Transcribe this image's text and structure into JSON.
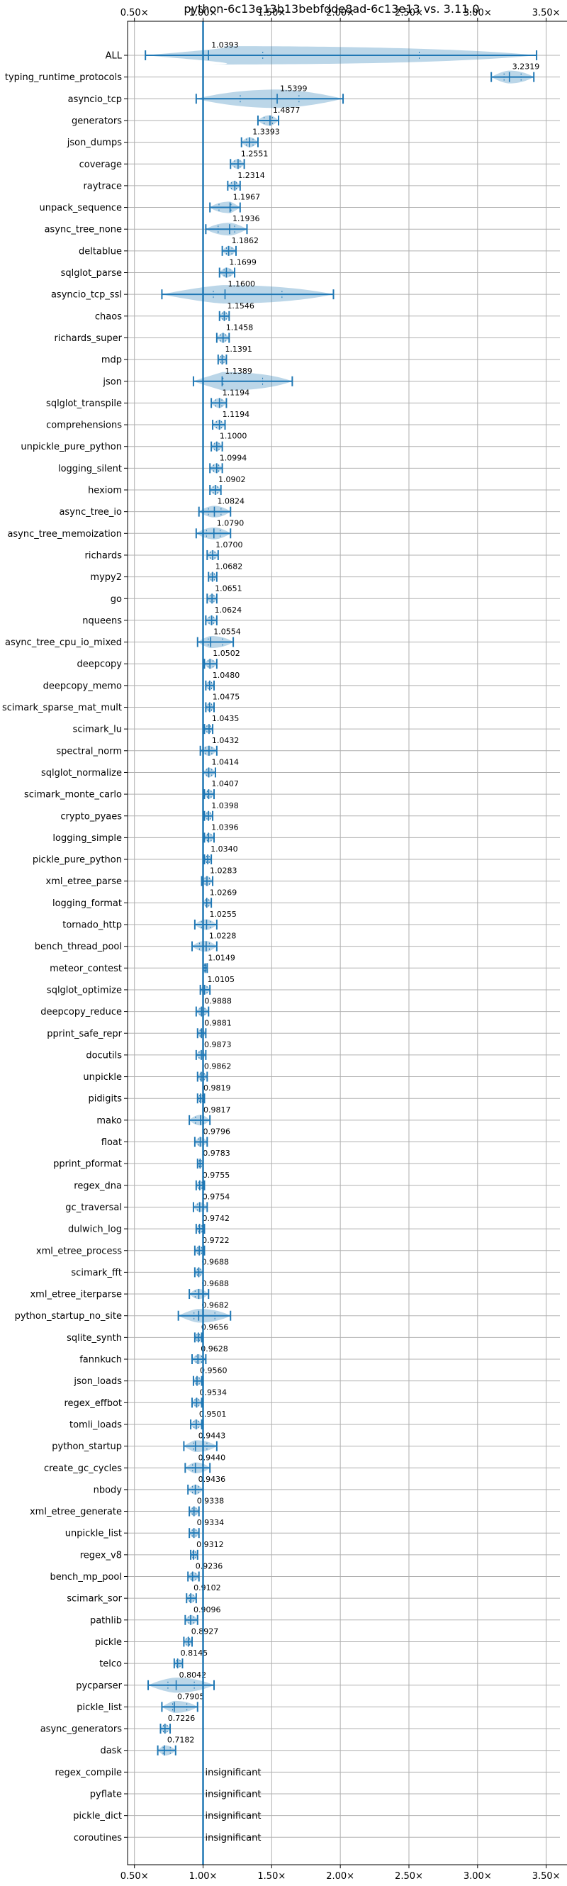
{
  "chart_data": {
    "type": "violin",
    "title": "python-6c13e13b13bebfdde8ad-6c13e13 vs. 3.11.0",
    "xlim": [
      0.45,
      3.6
    ],
    "x_ticks": [
      0.5,
      1.0,
      1.5,
      2.0,
      2.5,
      3.0,
      3.5
    ],
    "x_tick_labels": [
      "0.50×",
      "1.00×",
      "1.50×",
      "2.00×",
      "2.50×",
      "3.00×",
      "3.50×"
    ],
    "reference_line": 1.0,
    "grid": true,
    "rows": [
      {
        "name": "ALL",
        "label": "1.0393",
        "value": 1.0393,
        "min": 0.58,
        "max": 3.43
      },
      {
        "name": "typing_runtime_protocols",
        "label": "3.2319",
        "value": 3.2319,
        "min": 3.1,
        "max": 3.41
      },
      {
        "name": "asyncio_tcp",
        "label": "1.5399",
        "value": 1.5399,
        "min": 0.95,
        "max": 2.02
      },
      {
        "name": "generators",
        "label": "1.4877",
        "value": 1.4877,
        "min": 1.4,
        "max": 1.55
      },
      {
        "name": "json_dumps",
        "label": "1.3393",
        "value": 1.3393,
        "min": 1.28,
        "max": 1.4
      },
      {
        "name": "coverage",
        "label": "1.2551",
        "value": 1.2551,
        "min": 1.2,
        "max": 1.3
      },
      {
        "name": "raytrace",
        "label": "1.2314",
        "value": 1.2314,
        "min": 1.18,
        "max": 1.27
      },
      {
        "name": "unpack_sequence",
        "label": "1.1967",
        "value": 1.1967,
        "min": 1.05,
        "max": 1.27
      },
      {
        "name": "async_tree_none",
        "label": "1.1936",
        "value": 1.1936,
        "min": 1.02,
        "max": 1.32
      },
      {
        "name": "deltablue",
        "label": "1.1862",
        "value": 1.1862,
        "min": 1.14,
        "max": 1.24
      },
      {
        "name": "sqlglot_parse",
        "label": "1.1699",
        "value": 1.1699,
        "min": 1.12,
        "max": 1.23
      },
      {
        "name": "asyncio_tcp_ssl",
        "label": "1.1600",
        "value": 1.16,
        "min": 0.7,
        "max": 1.95
      },
      {
        "name": "chaos",
        "label": "1.1546",
        "value": 1.1546,
        "min": 1.12,
        "max": 1.19
      },
      {
        "name": "richards_super",
        "label": "1.1458",
        "value": 1.1458,
        "min": 1.1,
        "max": 1.19
      },
      {
        "name": "mdp",
        "label": "1.1391",
        "value": 1.1391,
        "min": 1.11,
        "max": 1.17
      },
      {
        "name": "json",
        "label": "1.1389",
        "value": 1.1389,
        "min": 0.93,
        "max": 1.65
      },
      {
        "name": "sqlglot_transpile",
        "label": "1.1194",
        "value": 1.1194,
        "min": 1.06,
        "max": 1.17
      },
      {
        "name": "comprehensions",
        "label": "1.1194",
        "value": 1.1194,
        "min": 1.07,
        "max": 1.16
      },
      {
        "name": "unpickle_pure_python",
        "label": "1.1000",
        "value": 1.1,
        "min": 1.06,
        "max": 1.14
      },
      {
        "name": "logging_silent",
        "label": "1.0994",
        "value": 1.0994,
        "min": 1.05,
        "max": 1.14
      },
      {
        "name": "hexiom",
        "label": "1.0902",
        "value": 1.0902,
        "min": 1.05,
        "max": 1.13
      },
      {
        "name": "async_tree_io",
        "label": "1.0824",
        "value": 1.0824,
        "min": 0.97,
        "max": 1.2
      },
      {
        "name": "async_tree_memoization",
        "label": "1.0790",
        "value": 1.079,
        "min": 0.95,
        "max": 1.2
      },
      {
        "name": "richards",
        "label": "1.0700",
        "value": 1.07,
        "min": 1.03,
        "max": 1.11
      },
      {
        "name": "mypy2",
        "label": "1.0682",
        "value": 1.0682,
        "min": 1.04,
        "max": 1.1
      },
      {
        "name": "go",
        "label": "1.0651",
        "value": 1.0651,
        "min": 1.03,
        "max": 1.1
      },
      {
        "name": "nqueens",
        "label": "1.0624",
        "value": 1.0624,
        "min": 1.02,
        "max": 1.1
      },
      {
        "name": "async_tree_cpu_io_mixed",
        "label": "1.0554",
        "value": 1.0554,
        "min": 0.96,
        "max": 1.22
      },
      {
        "name": "deepcopy",
        "label": "1.0502",
        "value": 1.0502,
        "min": 1.01,
        "max": 1.1
      },
      {
        "name": "deepcopy_memo",
        "label": "1.0480",
        "value": 1.048,
        "min": 1.02,
        "max": 1.08
      },
      {
        "name": "scimark_sparse_mat_mult",
        "label": "1.0475",
        "value": 1.0475,
        "min": 1.02,
        "max": 1.08
      },
      {
        "name": "scimark_lu",
        "label": "1.0435",
        "value": 1.0435,
        "min": 1.01,
        "max": 1.07
      },
      {
        "name": "spectral_norm",
        "label": "1.0432",
        "value": 1.0432,
        "min": 0.98,
        "max": 1.1
      },
      {
        "name": "sqlglot_normalize",
        "label": "1.0414",
        "value": 1.0414,
        "min": 1.0,
        "max": 1.09
      },
      {
        "name": "scimark_monte_carlo",
        "label": "1.0407",
        "value": 1.0407,
        "min": 1.01,
        "max": 1.08
      },
      {
        "name": "crypto_pyaes",
        "label": "1.0398",
        "value": 1.0398,
        "min": 1.01,
        "max": 1.07
      },
      {
        "name": "logging_simple",
        "label": "1.0396",
        "value": 1.0396,
        "min": 1.01,
        "max": 1.08
      },
      {
        "name": "pickle_pure_python",
        "label": "1.0340",
        "value": 1.034,
        "min": 1.01,
        "max": 1.06
      },
      {
        "name": "xml_etree_parse",
        "label": "1.0283",
        "value": 1.0283,
        "min": 0.99,
        "max": 1.07
      },
      {
        "name": "logging_format",
        "label": "1.0269",
        "value": 1.0269,
        "min": 1.0,
        "max": 1.06
      },
      {
        "name": "tornado_http",
        "label": "1.0255",
        "value": 1.0255,
        "min": 0.94,
        "max": 1.1
      },
      {
        "name": "bench_thread_pool",
        "label": "1.0228",
        "value": 1.0228,
        "min": 0.92,
        "max": 1.1
      },
      {
        "name": "meteor_contest",
        "label": "1.0149",
        "value": 1.0149,
        "min": 1.0,
        "max": 1.03
      },
      {
        "name": "sqlglot_optimize",
        "label": "1.0105",
        "value": 1.0105,
        "min": 0.98,
        "max": 1.05
      },
      {
        "name": "deepcopy_reduce",
        "label": "0.9888",
        "value": 0.9888,
        "min": 0.95,
        "max": 1.04
      },
      {
        "name": "pprint_safe_repr",
        "label": "0.9881",
        "value": 0.9881,
        "min": 0.96,
        "max": 1.02
      },
      {
        "name": "docutils",
        "label": "0.9873",
        "value": 0.9873,
        "min": 0.95,
        "max": 1.02
      },
      {
        "name": "unpickle",
        "label": "0.9862",
        "value": 0.9862,
        "min": 0.96,
        "max": 1.03
      },
      {
        "name": "pidigits",
        "label": "0.9819",
        "value": 0.9819,
        "min": 0.96,
        "max": 1.01
      },
      {
        "name": "mako",
        "label": "0.9817",
        "value": 0.9817,
        "min": 0.9,
        "max": 1.05
      },
      {
        "name": "float",
        "label": "0.9796",
        "value": 0.9796,
        "min": 0.94,
        "max": 1.03
      },
      {
        "name": "pprint_pformat",
        "label": "0.9783",
        "value": 0.9783,
        "min": 0.96,
        "max": 1.0
      },
      {
        "name": "regex_dna",
        "label": "0.9755",
        "value": 0.9755,
        "min": 0.95,
        "max": 1.01
      },
      {
        "name": "gc_traversal",
        "label": "0.9754",
        "value": 0.9754,
        "min": 0.93,
        "max": 1.03
      },
      {
        "name": "dulwich_log",
        "label": "0.9742",
        "value": 0.9742,
        "min": 0.95,
        "max": 1.01
      },
      {
        "name": "xml_etree_process",
        "label": "0.9722",
        "value": 0.9722,
        "min": 0.94,
        "max": 1.01
      },
      {
        "name": "scimark_fft",
        "label": "0.9688",
        "value": 0.9688,
        "min": 0.94,
        "max": 1.0
      },
      {
        "name": "xml_etree_iterparse",
        "label": "0.9688",
        "value": 0.9688,
        "min": 0.9,
        "max": 1.04
      },
      {
        "name": "python_startup_no_site",
        "label": "0.9682",
        "value": 0.9682,
        "min": 0.82,
        "max": 1.2
      },
      {
        "name": "sqlite_synth",
        "label": "0.9656",
        "value": 0.9656,
        "min": 0.94,
        "max": 0.99
      },
      {
        "name": "fannkuch",
        "label": "0.9628",
        "value": 0.9628,
        "min": 0.92,
        "max": 1.02
      },
      {
        "name": "json_loads",
        "label": "0.9560",
        "value": 0.956,
        "min": 0.93,
        "max": 0.99
      },
      {
        "name": "regex_effbot",
        "label": "0.9534",
        "value": 0.9534,
        "min": 0.92,
        "max": 0.99
      },
      {
        "name": "tomli_loads",
        "label": "0.9501",
        "value": 0.9501,
        "min": 0.91,
        "max": 0.99
      },
      {
        "name": "python_startup",
        "label": "0.9443",
        "value": 0.9443,
        "min": 0.86,
        "max": 1.1
      },
      {
        "name": "create_gc_cycles",
        "label": "0.9440",
        "value": 0.944,
        "min": 0.87,
        "max": 1.05
      },
      {
        "name": "nbody",
        "label": "0.9436",
        "value": 0.9436,
        "min": 0.89,
        "max": 1.0
      },
      {
        "name": "xml_etree_generate",
        "label": "0.9338",
        "value": 0.9338,
        "min": 0.9,
        "max": 0.97
      },
      {
        "name": "unpickle_list",
        "label": "0.9334",
        "value": 0.9334,
        "min": 0.9,
        "max": 0.97
      },
      {
        "name": "regex_v8",
        "label": "0.9312",
        "value": 0.9312,
        "min": 0.91,
        "max": 0.96
      },
      {
        "name": "bench_mp_pool",
        "label": "0.9236",
        "value": 0.9236,
        "min": 0.89,
        "max": 0.97
      },
      {
        "name": "scimark_sor",
        "label": "0.9102",
        "value": 0.9102,
        "min": 0.88,
        "max": 0.95
      },
      {
        "name": "pathlib",
        "label": "0.9096",
        "value": 0.9096,
        "min": 0.87,
        "max": 0.96
      },
      {
        "name": "pickle",
        "label": "0.8927",
        "value": 0.8927,
        "min": 0.86,
        "max": 0.92
      },
      {
        "name": "telco",
        "label": "0.8145",
        "value": 0.8145,
        "min": 0.79,
        "max": 0.85
      },
      {
        "name": "pycparser",
        "label": "0.8042",
        "value": 0.8042,
        "min": 0.6,
        "max": 1.08
      },
      {
        "name": "pickle_list",
        "label": "0.7905",
        "value": 0.7905,
        "min": 0.7,
        "max": 0.96
      },
      {
        "name": "async_generators",
        "label": "0.7226",
        "value": 0.7226,
        "min": 0.69,
        "max": 0.76
      },
      {
        "name": "dask",
        "label": "0.7182",
        "value": 0.7182,
        "min": 0.67,
        "max": 0.8
      },
      {
        "name": "regex_compile",
        "label": "insignificant",
        "value": null,
        "min": null,
        "max": null
      },
      {
        "name": "pyflate",
        "label": "insignificant",
        "value": null,
        "min": null,
        "max": null
      },
      {
        "name": "pickle_dict",
        "label": "insignificant",
        "value": null,
        "min": null,
        "max": null
      },
      {
        "name": "coroutines",
        "label": "insignificant",
        "value": null,
        "min": null,
        "max": null
      }
    ]
  }
}
